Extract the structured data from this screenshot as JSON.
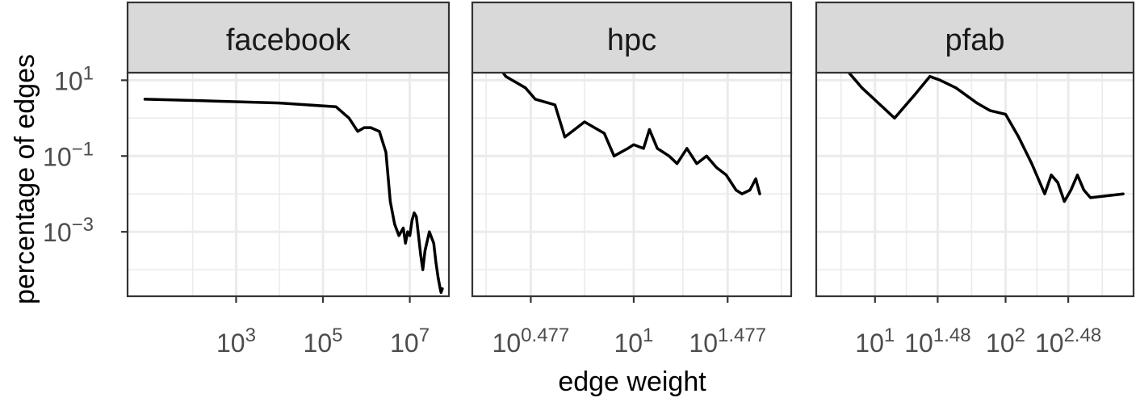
{
  "chart_data": {
    "type": "line",
    "xlabel": "edge weight",
    "ylabel": "percentage of edges",
    "x_scale": "log10",
    "y_scale": "log10",
    "y_log_range": [
      -4.7,
      1.2
    ],
    "y_ticks": [
      {
        "exp": 1,
        "base": "10",
        "sup": "1"
      },
      {
        "exp": -1,
        "base": "10",
        "sup": "−1"
      },
      {
        "exp": -3,
        "base": "10",
        "sup": "−3"
      }
    ],
    "y_minor_exp": [
      0,
      -2,
      -4
    ],
    "panels": [
      {
        "label": "facebook",
        "x_log_range": [
          0.5,
          7.9
        ],
        "x_ticks": [
          {
            "exp": 3,
            "base": "10",
            "sup": "3"
          },
          {
            "exp": 5,
            "base": "10",
            "sup": "5"
          },
          {
            "exp": 7,
            "base": "10",
            "sup": "7"
          }
        ],
        "x_minor_exp": [
          2,
          4,
          6
        ],
        "log_x": [
          0.9,
          2.5,
          4.0,
          5.3,
          5.6,
          5.8,
          5.95,
          6.1,
          6.3,
          6.45,
          6.55,
          6.65,
          6.75,
          6.85,
          6.9,
          6.95,
          7.0,
          7.05,
          7.1,
          7.15,
          7.2,
          7.25,
          7.3,
          7.35,
          7.45,
          7.55,
          7.6,
          7.65,
          7.7,
          7.72,
          7.75
        ],
        "log_y": [
          0.5,
          0.45,
          0.4,
          0.3,
          0.0,
          -0.35,
          -0.25,
          -0.25,
          -0.35,
          -0.9,
          -2.2,
          -2.8,
          -3.1,
          -2.9,
          -3.3,
          -3.0,
          -3.1,
          -2.7,
          -2.5,
          -2.6,
          -3.1,
          -3.6,
          -4.0,
          -3.5,
          -3.0,
          -3.3,
          -3.8,
          -4.2,
          -4.5,
          -4.6,
          -4.5
        ]
      },
      {
        "label": "hpc",
        "x_log_range": [
          0.18,
          1.8
        ],
        "x_ticks": [
          {
            "exp": 0.477,
            "base": "10",
            "sup": "0.477"
          },
          {
            "exp": 1,
            "base": "10",
            "sup": "1"
          },
          {
            "exp": 1.477,
            "base": "10",
            "sup": "1.477"
          }
        ],
        "x_minor_exp": [
          0.25,
          0.75,
          1.25,
          1.75
        ],
        "log_x": [
          0.25,
          0.35,
          0.45,
          0.5,
          0.6,
          0.65,
          0.75,
          0.85,
          0.9,
          0.97,
          1.0,
          1.05,
          1.08,
          1.12,
          1.18,
          1.22,
          1.27,
          1.32,
          1.37,
          1.42,
          1.47,
          1.52,
          1.55,
          1.59,
          1.62,
          1.64
        ],
        "log_y": [
          1.8,
          1.1,
          0.8,
          0.5,
          0.35,
          -0.5,
          -0.1,
          -0.4,
          -1.0,
          -0.8,
          -0.7,
          -0.8,
          -0.3,
          -0.8,
          -1.0,
          -1.2,
          -0.8,
          -1.2,
          -1.0,
          -1.3,
          -1.5,
          -1.9,
          -2.0,
          -1.9,
          -1.6,
          -2.0
        ]
      },
      {
        "label": "pfab",
        "x_log_range": [
          0.55,
          2.98
        ],
        "x_ticks": [
          {
            "exp": 1,
            "base": "10",
            "sup": "1"
          },
          {
            "exp": 1.48,
            "base": "10",
            "sup": "1.48"
          },
          {
            "exp": 2,
            "base": "10",
            "sup": "2"
          },
          {
            "exp": 2.48,
            "base": "10",
            "sup": "2.48"
          }
        ],
        "x_minor_exp": [
          0.74,
          1.24,
          1.74,
          2.24,
          2.74
        ],
        "log_x": [
          0.65,
          0.9,
          1.15,
          1.3,
          1.42,
          1.5,
          1.62,
          1.78,
          1.88,
          2.0,
          2.1,
          2.2,
          2.3,
          2.35,
          2.4,
          2.45,
          2.5,
          2.55,
          2.6,
          2.65,
          2.9
        ],
        "log_y": [
          1.8,
          0.8,
          0.0,
          0.6,
          1.1,
          1.0,
          0.8,
          0.4,
          0.2,
          0.1,
          -0.5,
          -1.2,
          -2.0,
          -1.5,
          -1.7,
          -2.2,
          -1.9,
          -1.5,
          -1.9,
          -2.1,
          -2.0
        ]
      }
    ]
  }
}
